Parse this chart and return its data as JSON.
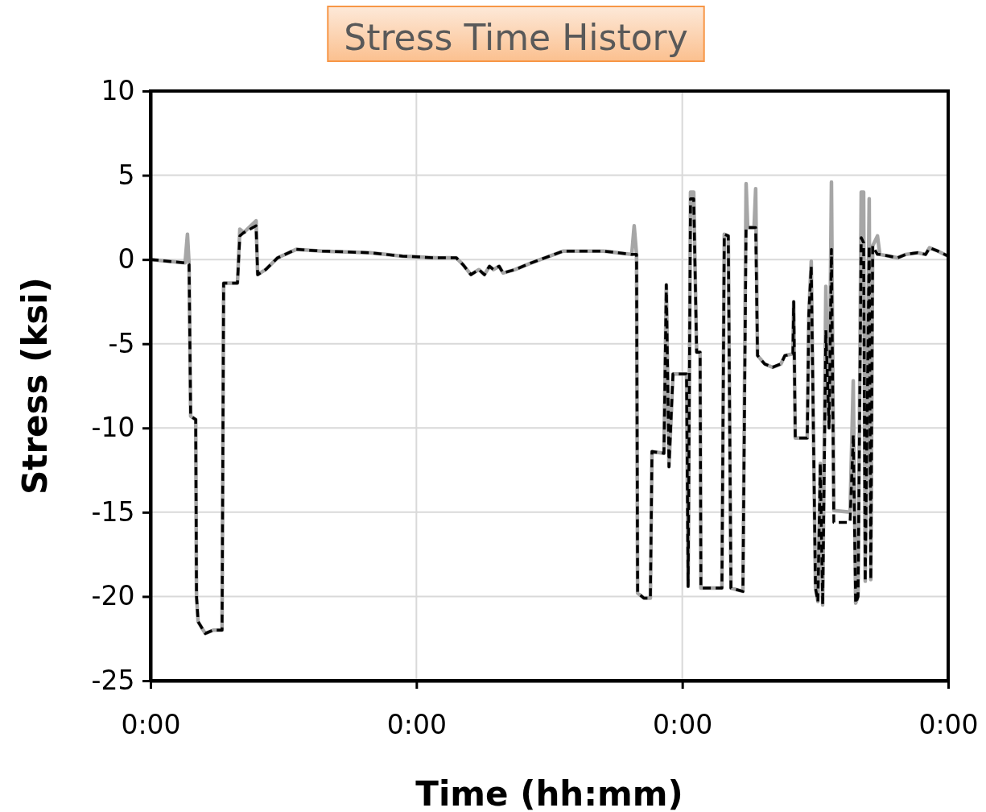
{
  "chart_data": {
    "type": "line",
    "title": "Stress Time History",
    "xlabel": "Time (hh:mm)",
    "ylabel": "Stress (ksi)",
    "xlim": [
      0,
      3
    ],
    "xticks": [
      {
        "value": 0,
        "label": "0:00"
      },
      {
        "value": 1,
        "label": "0:00"
      },
      {
        "value": 2,
        "label": "0:00"
      },
      {
        "value": 3,
        "label": "0:00"
      }
    ],
    "ylim": [
      -25,
      10
    ],
    "yticks": [
      -25,
      -20,
      -15,
      -10,
      -5,
      0,
      5,
      10
    ],
    "grid": true,
    "marker": "none",
    "x": [
      0,
      0.13,
      0.139,
      0.145,
      0.151,
      0.17,
      0.173,
      0.179,
      0.206,
      0.236,
      0.269,
      0.275,
      0.327,
      0.336,
      0.351,
      0.397,
      0.403,
      0.433,
      0.478,
      0.548,
      0.645,
      0.826,
      0.948,
      1.069,
      1.15,
      1.175,
      1.205,
      1.235,
      1.256,
      1.275,
      1.29,
      1.311,
      1.326,
      1.371,
      1.432,
      1.553,
      1.704,
      1.81,
      1.819,
      1.828,
      1.832,
      1.856,
      1.88,
      1.886,
      1.931,
      1.94,
      1.95,
      1.965,
      2.016,
      2.022,
      2.031,
      2.043,
      2.054,
      2.067,
      2.07,
      2.149,
      2.158,
      2.173,
      2.183,
      2.228,
      2.24,
      2.246,
      2.27,
      2.276,
      2.283,
      2.31,
      2.34,
      2.371,
      2.386,
      2.416,
      2.419,
      2.425,
      2.47,
      2.476,
      2.485,
      2.501,
      2.51,
      2.519,
      2.528,
      2.54,
      2.552,
      2.561,
      2.57,
      2.631,
      2.643,
      2.652,
      2.661,
      2.673,
      2.682,
      2.688,
      2.703,
      2.709,
      2.716,
      2.734,
      2.743,
      2.779,
      2.809,
      2.84,
      2.885,
      2.915,
      2.93,
      2.961,
      3
    ],
    "series": [
      {
        "color": "#a6a6a6",
        "line_style": "solid",
        "values": [
          0,
          -0.2,
          1.5,
          -0.3,
          -9.3,
          -9.5,
          -20,
          -21.5,
          -22.2,
          -22,
          -22,
          -1.4,
          -1.4,
          1.8,
          1.6,
          2.3,
          -0.9,
          -0.6,
          0.1,
          0.6,
          0.5,
          0.4,
          0.2,
          0.1,
          0.1,
          -0.3,
          -0.9,
          -0.6,
          -0.9,
          -0.4,
          -0.6,
          -0.4,
          -0.8,
          -0.6,
          -0.2,
          0.5,
          0.5,
          0.3,
          2,
          0.3,
          -19.8,
          -20.1,
          -20.1,
          -11.4,
          -11.5,
          -1.5,
          -12.3,
          -6.8,
          -6.8,
          -19.4,
          4,
          4,
          -5.5,
          -5.5,
          -19.5,
          -19.5,
          1.5,
          1.4,
          -19.5,
          -19.7,
          4.5,
          1.9,
          1.9,
          4.2,
          -5.7,
          -6.2,
          -6.4,
          -6.2,
          -5.7,
          -5.6,
          -2.5,
          -10.6,
          -10.6,
          -3.2,
          -0.1,
          -19.5,
          -20.3,
          -12.1,
          -20.5,
          -1.6,
          -10,
          4.6,
          -14.9,
          -15,
          -7.2,
          -20.4,
          -20,
          4,
          4,
          -19.1,
          3.6,
          -19,
          0.8,
          1.4,
          0.3,
          0.2,
          0.1,
          0.3,
          0.4,
          0.3,
          0.7,
          0.5,
          0.2
        ]
      },
      {
        "color": "#000000",
        "line_style": "dashed",
        "values": [
          0,
          -0.2,
          -0.2,
          -0.3,
          -9.3,
          -9.5,
          -20,
          -21.5,
          -22.2,
          -22,
          -22,
          -1.4,
          -1.4,
          1.4,
          1.6,
          2,
          -0.9,
          -0.6,
          0.1,
          0.6,
          0.5,
          0.4,
          0.2,
          0.1,
          0.1,
          -0.3,
          -0.9,
          -0.6,
          -0.9,
          -0.4,
          -0.6,
          -0.4,
          -0.8,
          -0.6,
          -0.2,
          0.5,
          0.5,
          0.3,
          0.3,
          0.3,
          -19.8,
          -20.1,
          -20.1,
          -11.4,
          -11.5,
          -1.5,
          -12.3,
          -6.8,
          -6.8,
          -19.4,
          3.6,
          3.6,
          -5.5,
          -5.5,
          -19.5,
          -19.5,
          1.5,
          1.4,
          -19.5,
          -19.7,
          1.9,
          1.9,
          1.9,
          1.9,
          -5.7,
          -6.2,
          -6.4,
          -6.2,
          -5.7,
          -5.6,
          -2.5,
          -10.6,
          -10.6,
          -3.2,
          -0.4,
          -19.5,
          -20.3,
          -12.1,
          -20.5,
          -4.2,
          -10,
          0.6,
          -15.6,
          -15.6,
          -10.4,
          -20.4,
          -20,
          1.3,
          1,
          -19.1,
          0.8,
          -19,
          0.8,
          0.3,
          0.3,
          0.2,
          0.1,
          0.3,
          0.4,
          0.3,
          0.7,
          0.5,
          0.2
        ]
      }
    ]
  }
}
